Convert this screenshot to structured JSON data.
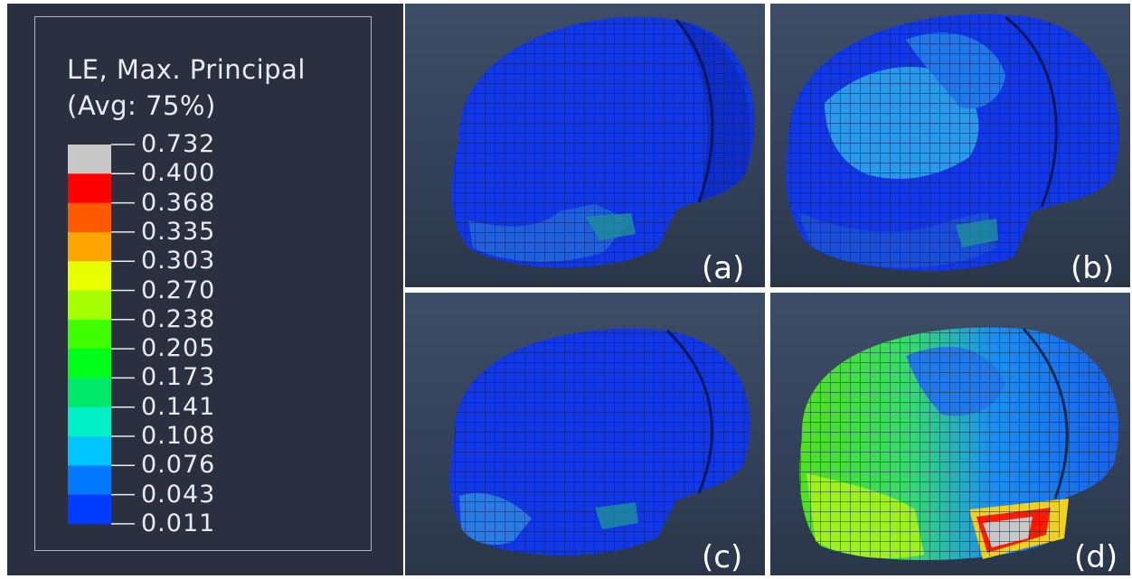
{
  "legend": {
    "title_line1": "LE, Max. Principal",
    "title_line2": "(Avg: 75%)",
    "ticks": [
      "0.732",
      "0.400",
      "0.368",
      "0.335",
      "0.303",
      "0.270",
      "0.238",
      "0.205",
      "0.173",
      "0.141",
      "0.108",
      "0.076",
      "0.043",
      "0.011"
    ],
    "bands": [
      "#c8c8c8",
      "#ff0000",
      "#ff5a00",
      "#ffa500",
      "#e8ff00",
      "#a8ff00",
      "#40ff00",
      "#00ff1a",
      "#00e86a",
      "#00f0c8",
      "#00c6ff",
      "#0078ff",
      "#003cff"
    ]
  },
  "panels": {
    "a": {
      "label": "(a)"
    },
    "b": {
      "label": "(b)"
    },
    "c": {
      "label": "(c)"
    },
    "d": {
      "label": "(d)"
    }
  },
  "colors": {
    "background": "#2a3040",
    "mesh_blue": "#1238e6",
    "mesh_light": "#28a8f0",
    "hot_red": "#ff1a00",
    "gray": "#c8c8c8"
  }
}
